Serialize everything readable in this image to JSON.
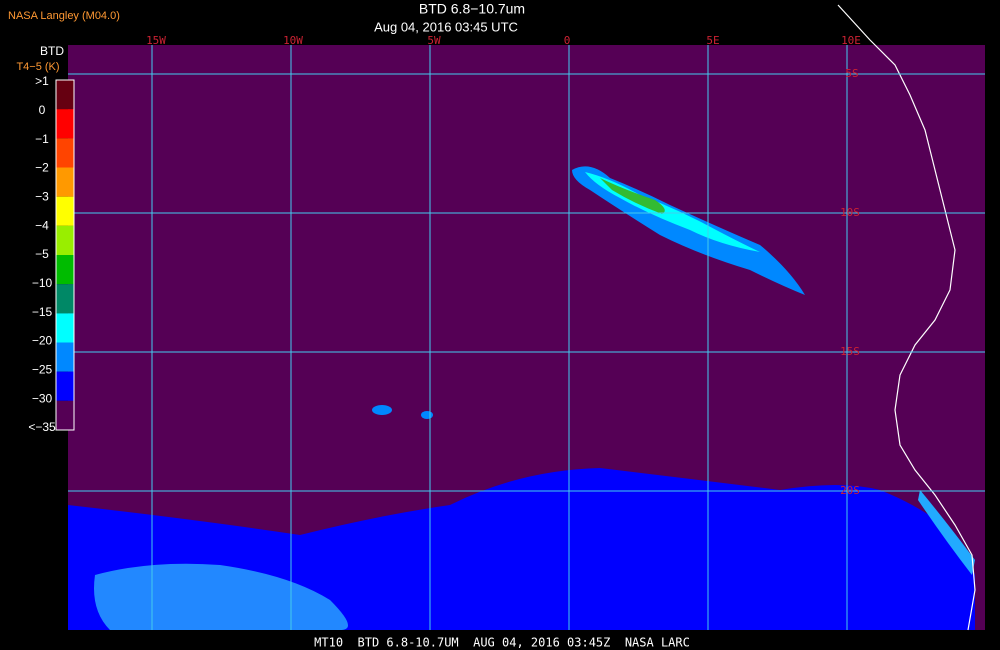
{
  "header": {
    "source": "NASA Langley (M04.0)",
    "title": "BTD 6.8−10.7um",
    "subtitle": "Aug 04, 2016 03:45 UTC"
  },
  "colorbar": {
    "title": "BTD",
    "subtitle": "T4−5 (K)",
    "labels": [
      ">1",
      "0",
      "−1",
      "−2",
      "−3",
      "−4",
      "−5",
      "−10",
      "−15",
      "−20",
      "−25",
      "−30",
      "<−35"
    ],
    "colors": [
      "#660011",
      "#ff0000",
      "#ff4400",
      "#ff9900",
      "#ffff00",
      "#99ee00",
      "#00bb00",
      "#008866",
      "#00ffff",
      "#0088ff",
      "#0000ff",
      "#550055"
    ]
  },
  "longitudes": [
    "15W",
    "10W",
    "5W",
    "0",
    "5E",
    "10E"
  ],
  "latitudes": [
    "5S",
    "10S",
    "15S",
    "20S"
  ],
  "footer": "MT10  BTD 6.8-10.7UM  AUG 04, 2016 03:45Z  NASA LARC"
}
